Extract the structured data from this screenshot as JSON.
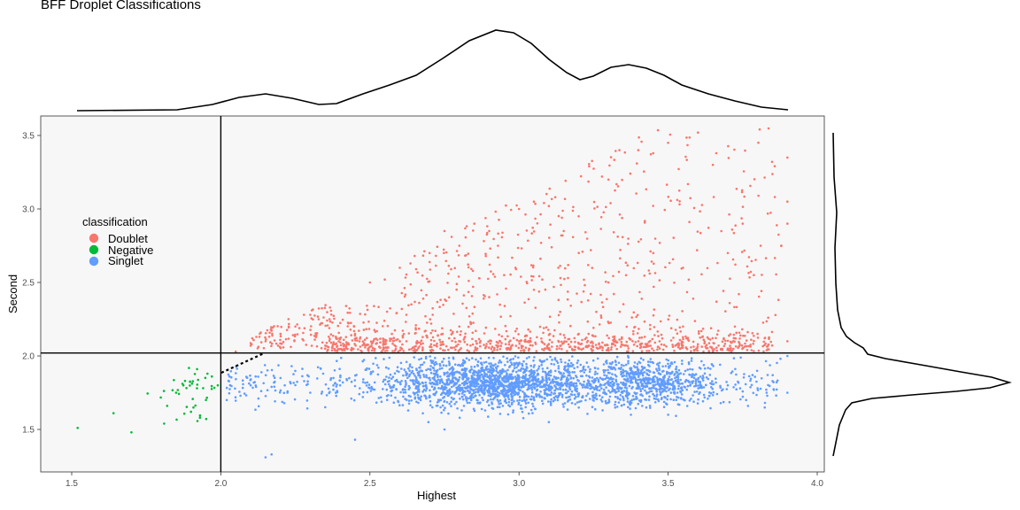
{
  "title": "BFF Droplet Classifications",
  "chart_data": {
    "type": "scatter",
    "title": "BFF Droplet Classifications",
    "xlabel": "Highest",
    "ylabel": "Second",
    "xlim": [
      1.4,
      4.02
    ],
    "ylim": [
      1.25,
      3.6
    ],
    "x_ticks": [
      "1.5",
      "2.0",
      "2.5",
      "3.0",
      "3.5",
      "4.0"
    ],
    "y_ticks": [
      "1.5",
      "2.0",
      "2.5",
      "3.0",
      "3.5"
    ],
    "reference_lines": {
      "vertical_x": 2.0,
      "horizontal_y": 2.02
    },
    "legend": {
      "title": "classification",
      "placement": "upper-left inside plot",
      "entries": [
        {
          "label": "Doublet",
          "color": "#F8766D"
        },
        {
          "label": "Negative",
          "color": "#00BA38"
        },
        {
          "label": "Singlet",
          "color": "#619CFF"
        }
      ]
    },
    "series": [
      {
        "name": "Doublet",
        "color": "#F8766D",
        "points": [
          [
            2.05,
            2.03
          ],
          [
            2.1,
            2.07
          ],
          [
            2.15,
            2.1
          ],
          [
            2.2,
            2.15
          ],
          [
            2.25,
            2.2
          ],
          [
            2.3,
            2.28
          ],
          [
            2.35,
            2.05
          ],
          [
            2.42,
            2.34
          ],
          [
            2.5,
            2.5
          ],
          [
            2.55,
            2.52
          ],
          [
            2.6,
            2.6
          ],
          [
            2.65,
            2.68
          ],
          [
            2.7,
            2.7
          ],
          [
            2.75,
            2.85
          ],
          [
            2.8,
            2.75
          ],
          [
            2.85,
            2.9
          ],
          [
            2.9,
            2.85
          ],
          [
            2.95,
            2.55
          ],
          [
            3.0,
            3.0
          ],
          [
            3.05,
            3.05
          ],
          [
            3.1,
            3.02
          ],
          [
            3.2,
            2.95
          ],
          [
            3.3,
            3.2
          ],
          [
            3.4,
            3.4
          ],
          [
            3.5,
            3.45
          ],
          [
            3.6,
            3.52
          ],
          [
            3.65,
            3.3
          ],
          [
            3.7,
            2.7
          ],
          [
            3.75,
            2.9
          ],
          [
            3.9,
            3.35
          ],
          [
            3.9,
            3.05
          ],
          [
            3.9,
            2.9
          ],
          [
            2.45,
            2.15
          ],
          [
            2.6,
            2.1
          ],
          [
            2.8,
            2.2
          ],
          [
            3.0,
            2.1
          ],
          [
            3.2,
            2.15
          ],
          [
            3.4,
            2.1
          ],
          [
            3.55,
            2.2
          ],
          [
            3.7,
            2.05
          ],
          [
            3.8,
            2.15
          ],
          [
            3.9,
            2.1
          ],
          [
            2.9,
            2.4
          ],
          [
            3.05,
            2.45
          ],
          [
            3.45,
            2.7
          ],
          [
            3.55,
            2.6
          ],
          [
            3.15,
            2.85
          ],
          [
            3.3,
            2.5
          ]
        ]
      },
      {
        "name": "Negative",
        "color": "#00BA38",
        "points": [
          [
            1.52,
            1.51
          ],
          [
            1.64,
            1.61
          ],
          [
            1.7,
            1.48
          ],
          [
            1.81,
            1.54
          ],
          [
            1.82,
            1.66
          ],
          [
            1.85,
            1.75
          ],
          [
            1.88,
            1.83
          ],
          [
            1.9,
            1.62
          ],
          [
            1.92,
            1.78
          ],
          [
            1.95,
            1.7
          ],
          [
            1.97,
            1.86
          ],
          [
            1.93,
            1.58
          ],
          [
            1.99,
            1.8
          ]
        ]
      },
      {
        "name": "Singlet",
        "color": "#619CFF",
        "points": [
          [
            2.02,
            1.7
          ],
          [
            2.1,
            1.8
          ],
          [
            2.2,
            1.85
          ],
          [
            2.3,
            1.75
          ],
          [
            2.4,
            1.8
          ],
          [
            2.5,
            1.78
          ],
          [
            2.6,
            1.82
          ],
          [
            2.7,
            1.85
          ],
          [
            2.8,
            1.8
          ],
          [
            2.9,
            1.82
          ],
          [
            3.0,
            1.85
          ],
          [
            3.1,
            1.8
          ],
          [
            3.2,
            1.83
          ],
          [
            3.3,
            1.85
          ],
          [
            3.4,
            1.8
          ],
          [
            3.5,
            1.82
          ],
          [
            3.6,
            1.84
          ],
          [
            3.7,
            1.8
          ],
          [
            3.8,
            1.78
          ],
          [
            3.9,
            1.75
          ],
          [
            2.15,
            1.31
          ],
          [
            2.17,
            1.33
          ],
          [
            2.45,
            1.43
          ],
          [
            2.75,
            1.5
          ],
          [
            3.1,
            1.55
          ],
          [
            3.5,
            1.6
          ],
          [
            3.9,
            2.0
          ]
        ]
      }
    ]
  }
}
